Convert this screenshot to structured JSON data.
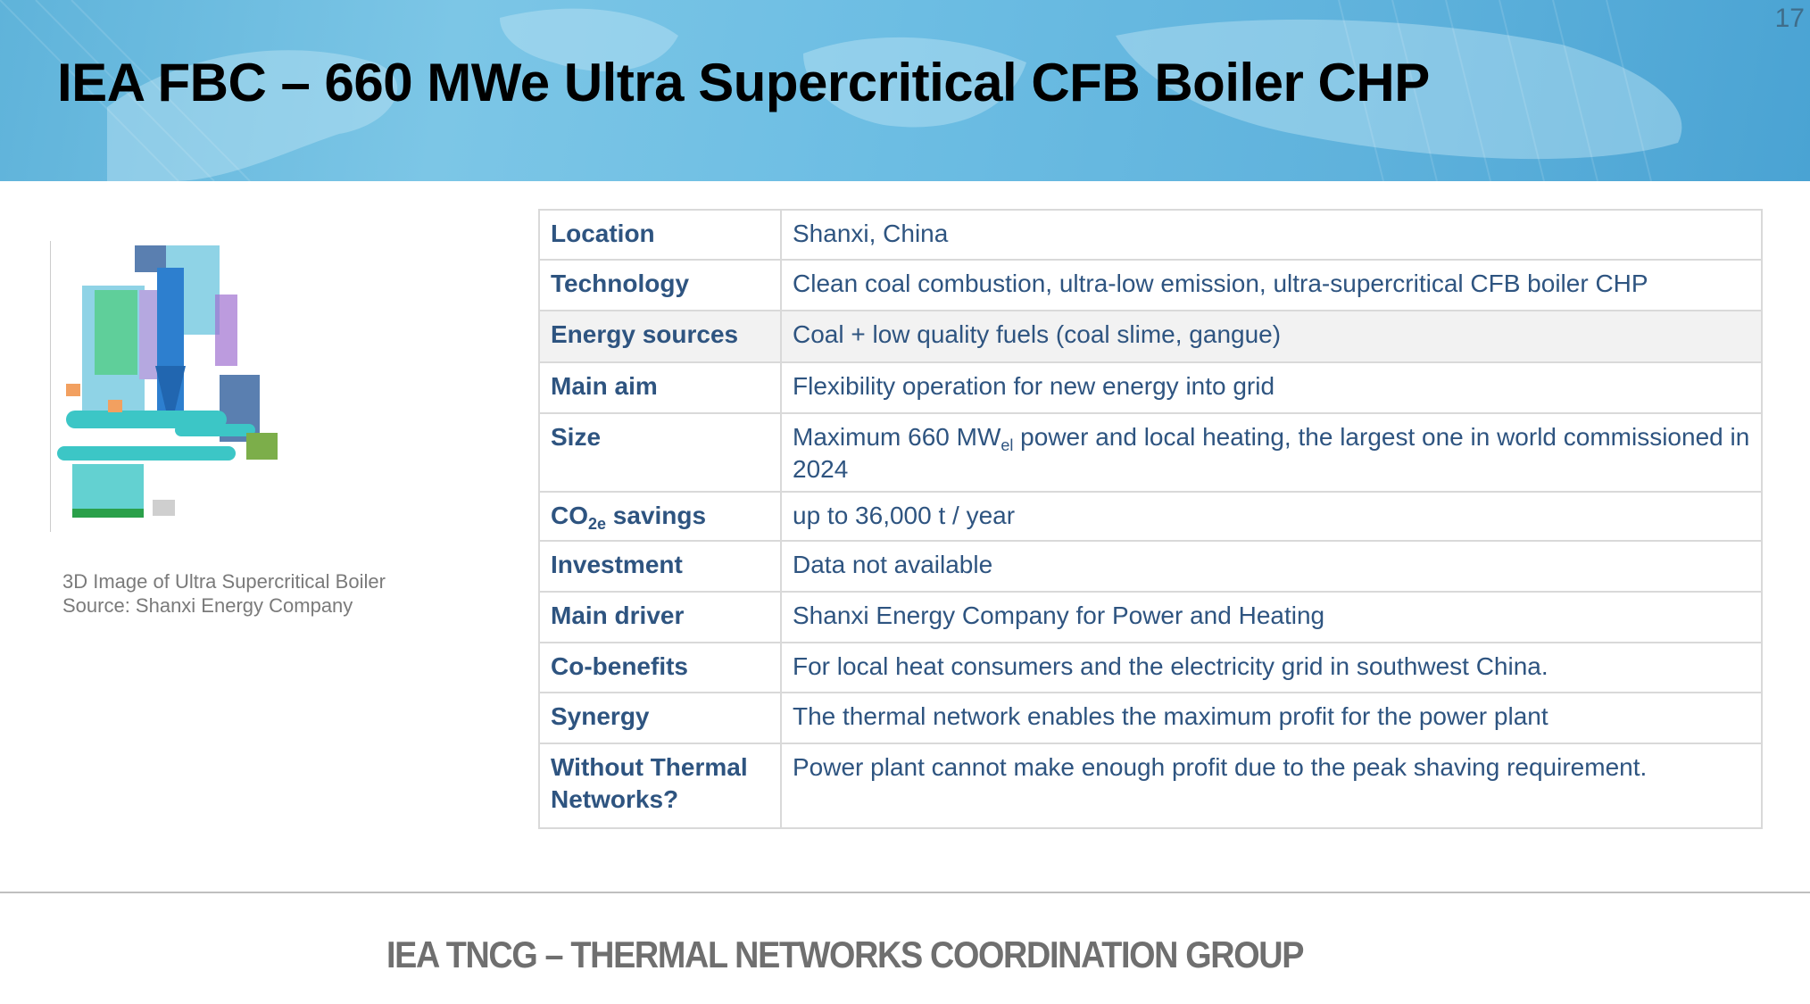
{
  "header": {
    "title": "IEA FBC – 660 MWe Ultra Supercritical CFB Boiler CHP",
    "page_number": "17"
  },
  "figure": {
    "caption_line1": "3D Image of Ultra Supercritical Boiler",
    "caption_line2": "Source: Shanxi Energy Company"
  },
  "table": {
    "rows": [
      {
        "label": "Location",
        "value": "Shanxi, China"
      },
      {
        "label": "Technology",
        "value": "Clean coal combustion, ultra-low emission,  ultra-supercritical CFB boiler CHP"
      },
      {
        "label": "Energy sources",
        "value": "Coal + low quality fuels (coal slime, gangue)"
      },
      {
        "label": "Main aim",
        "value": "Flexibility operation for new energy into grid"
      },
      {
        "label": "Size",
        "value_pre": "Maximum 660 MW",
        "value_sub": "el",
        "value_post": " power and local heating, the largest one in world commissioned in 2024"
      },
      {
        "label_pre": "CO",
        "label_sub": "2e",
        "label_post": " savings",
        "value": "up to 36,000 t / year"
      },
      {
        "label": "Investment",
        "value": "Data not available"
      },
      {
        "label": "Main driver",
        "value": "Shanxi Energy Company for Power and Heating"
      },
      {
        "label": "Co-benefits",
        "value": "For local heat consumers and the electricity grid in southwest China."
      },
      {
        "label": "Synergy",
        "value": "The thermal network enables the maximum profit for the power plant"
      },
      {
        "label": "Without Thermal Networks?",
        "value": "Power plant cannot make enough profit due to the peak shaving requirement."
      }
    ]
  },
  "footer": {
    "text": "IEA TNCG – THERMAL NETWORKS COORDINATION GROUP"
  },
  "colors": {
    "text": "#2e5480",
    "header_bg": "#5fb3da",
    "border": "#d9d9d9"
  }
}
